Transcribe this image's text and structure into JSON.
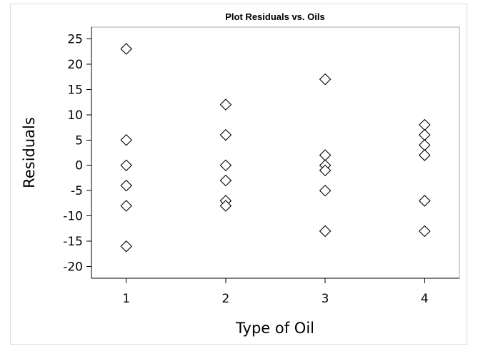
{
  "chart_data": {
    "type": "scatter",
    "title": "Plot Residuals vs. Oils",
    "xlabel": "Type of Oil",
    "ylabel": "Residuals",
    "x_ticks": [
      1,
      2,
      3,
      4
    ],
    "y_ticks": [
      25,
      20,
      15,
      10,
      5,
      0,
      -5,
      -10,
      -15,
      -20
    ],
    "xlim": [
      0.65,
      4.35
    ],
    "ylim": [
      -22.3,
      27.3
    ],
    "marker": "diamond",
    "grid": false,
    "legend": "none",
    "series": [
      {
        "name": "Residuals",
        "points": [
          {
            "x": 1,
            "y": 23
          },
          {
            "x": 1,
            "y": 5
          },
          {
            "x": 1,
            "y": 0
          },
          {
            "x": 1,
            "y": -4
          },
          {
            "x": 1,
            "y": -8
          },
          {
            "x": 1,
            "y": -16
          },
          {
            "x": 2,
            "y": 12
          },
          {
            "x": 2,
            "y": 6
          },
          {
            "x": 2,
            "y": 0
          },
          {
            "x": 2,
            "y": -3
          },
          {
            "x": 2,
            "y": -7
          },
          {
            "x": 2,
            "y": -8
          },
          {
            "x": 3,
            "y": 17
          },
          {
            "x": 3,
            "y": 2
          },
          {
            "x": 3,
            "y": 0
          },
          {
            "x": 3,
            "y": -1
          },
          {
            "x": 3,
            "y": -5
          },
          {
            "x": 3,
            "y": -13
          },
          {
            "x": 4,
            "y": 8
          },
          {
            "x": 4,
            "y": 6
          },
          {
            "x": 4,
            "y": 4
          },
          {
            "x": 4,
            "y": 2
          },
          {
            "x": 4,
            "y": -7
          },
          {
            "x": 4,
            "y": -13
          }
        ]
      }
    ]
  }
}
